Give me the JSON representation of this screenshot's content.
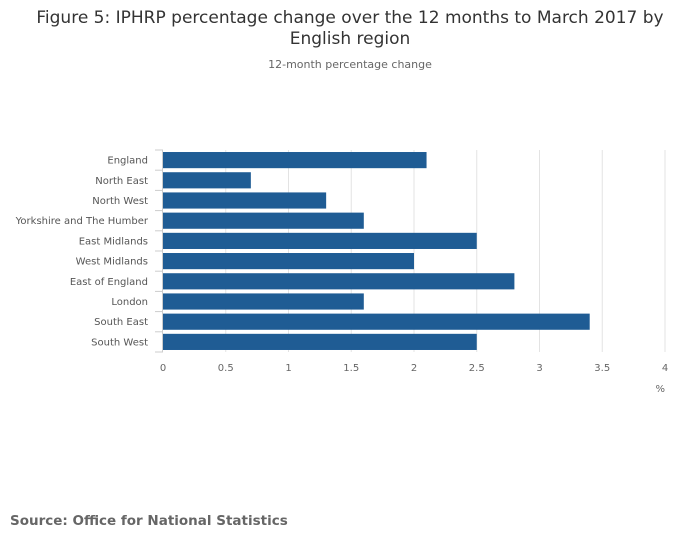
{
  "chart_data": {
    "type": "bar",
    "orientation": "horizontal",
    "title": "Figure 5: IPHRP percentage change over the 12 months to March 2017 by English region",
    "subtitle": "12-month percentage change",
    "categories": [
      "England",
      "North East",
      "North West",
      "Yorkshire and The Humber",
      "East Midlands",
      "West Midlands",
      "East of England",
      "London",
      "South East",
      "South West"
    ],
    "values": [
      2.1,
      0.7,
      1.3,
      1.6,
      2.5,
      2.0,
      2.8,
      1.6,
      3.4,
      2.5
    ],
    "xlabel": "%",
    "xlim": [
      0,
      4
    ],
    "xticks": [
      "0",
      "0.5",
      "1",
      "1.5",
      "2",
      "2.5",
      "3",
      "3.5",
      "4"
    ],
    "grid": true,
    "bar_color": "#1f5c94"
  },
  "source": "Source: Office for National Statistics"
}
